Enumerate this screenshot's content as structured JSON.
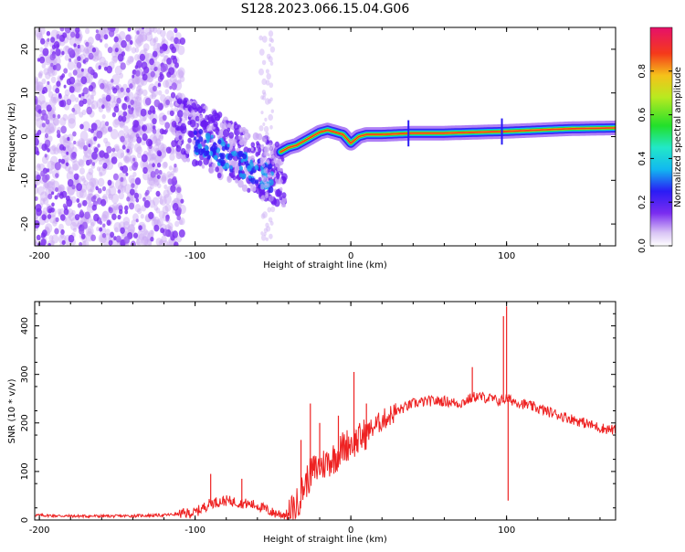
{
  "title": "S128.2023.066.15.04.G06",
  "chart_data": [
    {
      "type": "heatmap",
      "xlabel": "Height of straight line (km)",
      "ylabel": "Frequency (Hz)",
      "xlim": [
        -203,
        170
      ],
      "ylim": [
        -25,
        25
      ],
      "x_ticks": [
        -200,
        -100,
        0,
        100
      ],
      "x_tick_labels": [
        "-200",
        "-100",
        "0",
        "100"
      ],
      "y_ticks": [
        -20,
        -10,
        0,
        10,
        20
      ],
      "y_tick_labels": [
        "-20",
        "-10",
        "0",
        "10",
        "20"
      ],
      "colorbar": {
        "label": "Normalized spectral amplitude",
        "range": [
          0,
          1
        ],
        "ticks": [
          0,
          0.2,
          0.4,
          0.6,
          0.8
        ],
        "tick_labels": [
          "0.0",
          "0.2",
          "0.4",
          "0.6",
          "0.8"
        ]
      },
      "ridge": {
        "x": [
          -45,
          -40,
          -35,
          -30,
          -25,
          -20,
          -15,
          -10,
          -5,
          0,
          5,
          10,
          20,
          40,
          60,
          80,
          100,
          120,
          140,
          170
        ],
        "y": [
          -3.5,
          -2.5,
          -2,
          -1,
          0,
          1,
          1.5,
          1,
          0.5,
          -1.5,
          0,
          0.5,
          0.5,
          0.8,
          0.8,
          1,
          1.2,
          1.5,
          1.8,
          2
        ]
      },
      "grid": false
    },
    {
      "type": "line",
      "xlabel": "Height of straight line (km)",
      "ylabel": "SNR (10 * v/v)",
      "xlim": [
        -203,
        170
      ],
      "ylim": [
        0,
        450
      ],
      "x_ticks": [
        -200,
        -100,
        0,
        100
      ],
      "x_tick_labels": [
        "-200",
        "-100",
        "0",
        "100"
      ],
      "y_ticks": [
        0,
        100,
        200,
        300,
        400
      ],
      "y_tick_labels": [
        "0",
        "100",
        "200",
        "300",
        "400"
      ],
      "series": [
        {
          "color": "#ee2222",
          "x": [
            -203,
            -180,
            -150,
            -120,
            -100,
            -90,
            -80,
            -70,
            -60,
            -50,
            -40,
            -35,
            -30,
            -25,
            -20,
            -15,
            -10,
            -5,
            0,
            5,
            10,
            20,
            30,
            40,
            50,
            60,
            70,
            80,
            90,
            95,
            100,
            105,
            110,
            120,
            130,
            140,
            150,
            160,
            170
          ],
          "y": [
            10,
            8,
            8,
            10,
            15,
            35,
            40,
            35,
            30,
            15,
            10,
            30,
            70,
            100,
            110,
            120,
            130,
            150,
            160,
            165,
            180,
            205,
            225,
            240,
            245,
            245,
            240,
            255,
            250,
            245,
            250,
            245,
            240,
            230,
            220,
            210,
            200,
            190,
            185
          ]
        }
      ],
      "spikes": {
        "x": [
          -90,
          -70,
          -32,
          -26,
          -20,
          -8,
          2,
          10,
          78,
          98,
          100,
          101
        ],
        "y": [
          95,
          85,
          165,
          240,
          200,
          215,
          305,
          240,
          315,
          420,
          440,
          40
        ]
      },
      "grid": false
    }
  ],
  "colors": {
    "line": "#ee2222",
    "frame": "#000000"
  }
}
